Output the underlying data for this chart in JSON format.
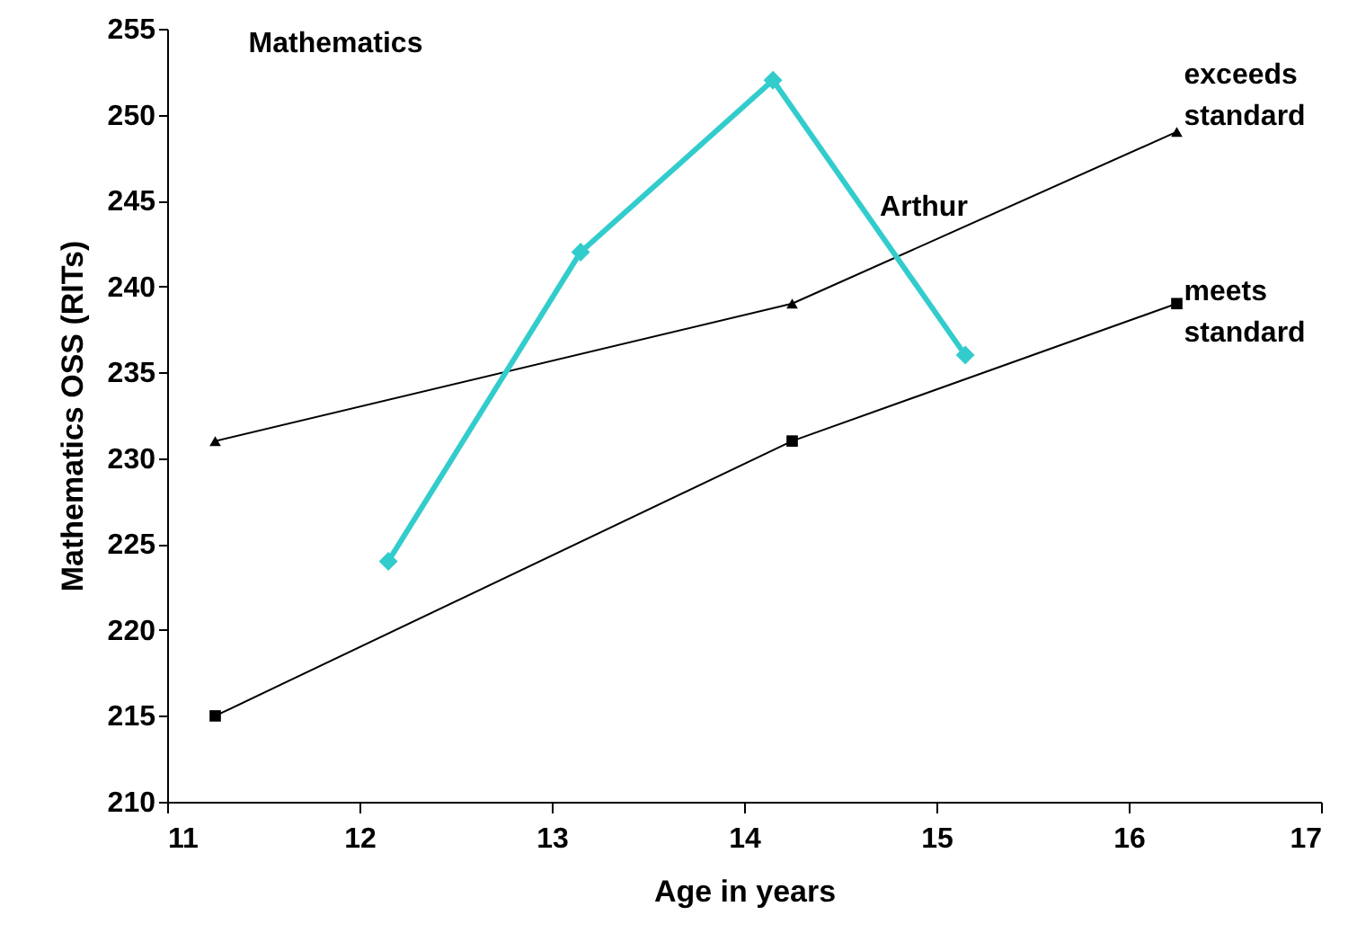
{
  "chart_data": {
    "type": "line",
    "title": "Mathematics",
    "xlabel": "Age in years",
    "ylabel": "Mathematics OSS (RITs)",
    "xlim": [
      11,
      17
    ],
    "xticks": [
      11,
      12,
      13,
      14,
      15,
      16,
      17
    ],
    "ylim": [
      210,
      255
    ],
    "yticks": [
      210,
      215,
      220,
      225,
      230,
      235,
      240,
      245,
      250,
      255
    ],
    "grid": false,
    "series": [
      {
        "name": "exceeds standard",
        "color": "#000000",
        "marker": "triangle",
        "x": [
          11.25,
          14.25,
          16.25
        ],
        "values": [
          231,
          239,
          249
        ]
      },
      {
        "name": "meets standard",
        "color": "#000000",
        "marker": "square",
        "x": [
          11.25,
          14.25,
          16.25
        ],
        "values": [
          215,
          231,
          239
        ]
      },
      {
        "name": "Arthur",
        "color": "#33cccc",
        "marker": "diamond",
        "x": [
          12.15,
          13.15,
          14.15,
          15.15
        ],
        "values": [
          224,
          242,
          252,
          236
        ]
      }
    ]
  }
}
